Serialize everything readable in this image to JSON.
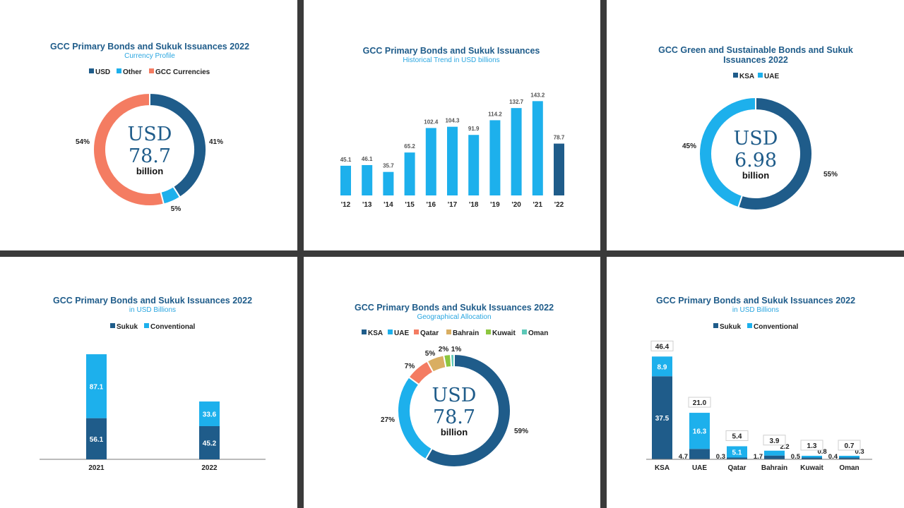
{
  "colors": {
    "dark_blue": "#1f5c8a",
    "light_blue": "#1db0ec",
    "salmon": "#f47c62",
    "tan": "#d9ae62",
    "green": "#8cc63f",
    "teal": "#5cc8b8"
  },
  "chart_data": [
    {
      "type": "pie",
      "title": "GCC Primary Bonds and Sukuk Issuances 2022",
      "subtitle": "Currency Profile",
      "center": {
        "currency": "USD",
        "value": "78.7",
        "unit": "billion"
      },
      "legend": [
        "USD",
        "Other",
        "GCC Currencies"
      ],
      "slices": [
        {
          "label": "USD",
          "value": 41,
          "text": "41%",
          "color": "#1f5c8a"
        },
        {
          "label": "Other",
          "value": 5,
          "text": "5%",
          "color": "#1db0ec"
        },
        {
          "label": "GCC Currencies",
          "value": 54,
          "text": "54%",
          "color": "#f47c62"
        }
      ]
    },
    {
      "type": "bar",
      "title": "GCC Primary Bonds and Sukuk Issuances",
      "subtitle": "Historical Trend in USD billions",
      "categories": [
        "'12",
        "'13",
        "'14",
        "'15",
        "'16",
        "'17",
        "'18",
        "'19",
        "'20",
        "'21",
        "'22"
      ],
      "values": [
        45.1,
        46.1,
        35.7,
        65.2,
        102.4,
        104.3,
        91.9,
        114.2,
        132.7,
        143.2,
        78.7
      ],
      "value_labels": [
        "45.1",
        "46.1",
        "35.7",
        "65.2",
        "102.4",
        "104.3",
        "91.9",
        "114.2",
        "132.7",
        "143.2",
        "78.7"
      ],
      "highlight_last": true,
      "ylim": [
        0,
        150
      ]
    },
    {
      "type": "pie",
      "title": "GCC Green and Sustainable Bonds and Sukuk",
      "title_line2": "Issuances 2022",
      "center": {
        "currency": "USD",
        "value": "6.98",
        "unit": "billion"
      },
      "legend": [
        "KSA",
        "UAE"
      ],
      "slices": [
        {
          "label": "KSA",
          "value": 55,
          "text": "55%",
          "color": "#1f5c8a"
        },
        {
          "label": "UAE",
          "value": 45,
          "text": "45%",
          "color": "#1db0ec"
        }
      ]
    },
    {
      "type": "bar",
      "stacked": true,
      "title": "GCC Primary Bonds and Sukuk Issuances 2022",
      "subtitle": "in USD Billions",
      "legend": [
        "Sukuk",
        "Conventional"
      ],
      "categories": [
        "2021",
        "2022"
      ],
      "series": [
        {
          "name": "Sukuk",
          "values": [
            56.1,
            45.2
          ],
          "labels": [
            "56.1",
            "45.2"
          ]
        },
        {
          "name": "Conventional",
          "values": [
            87.1,
            33.6
          ],
          "labels": [
            "87.1",
            "33.6"
          ]
        }
      ],
      "ylim": [
        0,
        150
      ]
    },
    {
      "type": "pie",
      "title": "GCC Primary Bonds and Sukuk Issuances 2022",
      "subtitle": "Geographical Allocation",
      "center": {
        "currency": "USD",
        "value": "78.7",
        "unit": "billion"
      },
      "legend": [
        "KSA",
        "UAE",
        "Qatar",
        "Bahrain",
        "Kuwait",
        "Oman"
      ],
      "slices": [
        {
          "label": "KSA",
          "value": 59,
          "text": "59%",
          "color": "#1f5c8a"
        },
        {
          "label": "UAE",
          "value": 27,
          "text": "27%",
          "color": "#1db0ec"
        },
        {
          "label": "Qatar",
          "value": 7,
          "text": "7%",
          "color": "#f47c62"
        },
        {
          "label": "Bahrain",
          "value": 5,
          "text": "5%",
          "color": "#d9ae62"
        },
        {
          "label": "Kuwait",
          "value": 2,
          "text": "2%",
          "color": "#8cc63f"
        },
        {
          "label": "Oman",
          "value": 1,
          "text": "1%",
          "color": "#5cc8b8"
        }
      ]
    },
    {
      "type": "bar",
      "stacked": true,
      "title": "GCC Primary Bonds and Sukuk Issuances 2022",
      "subtitle": "in USD Billions",
      "legend": [
        "Sukuk",
        "Conventional"
      ],
      "categories": [
        "KSA",
        "UAE",
        "Qatar",
        "Bahrain",
        "Kuwait",
        "Oman"
      ],
      "series": [
        {
          "name": "Sukuk",
          "values": [
            37.5,
            4.7,
            0.3,
            1.7,
            0.5,
            0.4
          ],
          "labels": [
            "37.5",
            "4.7",
            "0.3",
            "1.7",
            "0.5",
            "0.4"
          ]
        },
        {
          "name": "Conventional",
          "values": [
            8.9,
            16.3,
            5.1,
            2.2,
            0.8,
            0.3
          ],
          "labels": [
            "8.9",
            "16.3",
            "5.1",
            "2.2",
            "0.8",
            "0.3"
          ]
        }
      ],
      "totals": [
        "46.4",
        "21.0",
        "5.4",
        "3.9",
        "1.3",
        "0.7"
      ],
      "ylim": [
        0,
        50
      ]
    }
  ]
}
